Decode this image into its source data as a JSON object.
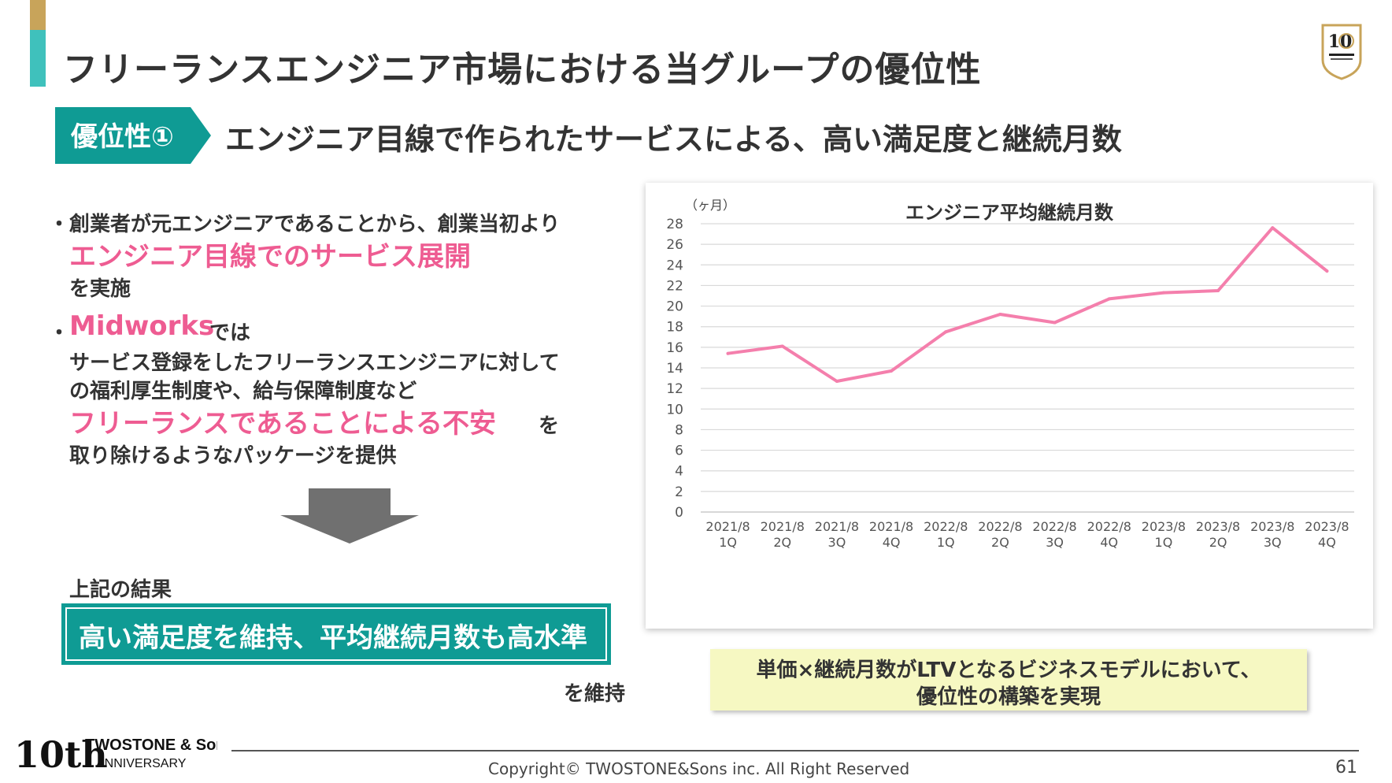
{
  "title": "フリーランスエンジニア市場における当グループの優位性",
  "advantage": {
    "tag": "優位性①",
    "heading": "エンジニア目線で作られたサービスによる、高い満足度と継続月数"
  },
  "bullets": [
    {
      "line1": "創業者が元エンジニアであることから、創業当初より",
      "highlight": "エンジニア目線でのサービス展開",
      "line3": "を実施"
    },
    {
      "highlight": "Midworks",
      "line1_suffix": "では",
      "line2": "サービス登録をしたフリーランスエンジニアに対して",
      "line3": "の福利厚生制度や、給与保障制度など",
      "highlight2": "フリーランスであることによる不安",
      "highlight2_suffix": "を",
      "line5": "取り除けるようなパッケージを提供"
    }
  ],
  "bullet_marker": "・",
  "result": {
    "label": "上記の結果",
    "box": "高い満足度を維持、平均継続月数も高水準",
    "suffix": "を維持"
  },
  "note": {
    "line1": "単価×継続月数がLTVとなるビジネスモデルにおいて、",
    "line2": "優位性の構築を実現"
  },
  "chart_data": {
    "type": "line",
    "title": "エンジニア平均継続月数",
    "unit_label": "（ヶ月）",
    "categories": [
      [
        "2021/8",
        "1Q"
      ],
      [
        "2021/8",
        "2Q"
      ],
      [
        "2021/8",
        "3Q"
      ],
      [
        "2021/8",
        "4Q"
      ],
      [
        "2022/8",
        "1Q"
      ],
      [
        "2022/8",
        "2Q"
      ],
      [
        "2022/8",
        "3Q"
      ],
      [
        "2022/8",
        "4Q"
      ],
      [
        "2023/8",
        "1Q"
      ],
      [
        "2023/8",
        "2Q"
      ],
      [
        "2023/8",
        "3Q"
      ],
      [
        "2023/8",
        "4Q"
      ]
    ],
    "values": [
      15.4,
      16.1,
      12.7,
      13.7,
      17.5,
      19.2,
      18.4,
      20.7,
      21.3,
      21.5,
      27.6,
      23.4
    ],
    "yticks": [
      0,
      2,
      4,
      6,
      8,
      10,
      12,
      14,
      16,
      18,
      20,
      22,
      24,
      26,
      28
    ],
    "ylim": [
      0,
      28
    ],
    "grid": true,
    "line_color": "#f47fac"
  },
  "footer": {
    "logo_brand": "TWOSTONE & Sons",
    "logo_sub": "ANNIVERSARY",
    "logo_mark": "10th",
    "copyright": "Copyright© TWOSTONE&Sons inc. All Right Reserved",
    "page_number": "61"
  },
  "colors": {
    "teal": "#0f9b94",
    "accent_teal": "#3fc1bc",
    "gold": "#c8a45a",
    "pink": "#ee5c92",
    "note_bg": "#f6f8c2"
  }
}
